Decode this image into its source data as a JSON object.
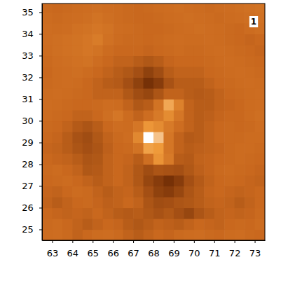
{
  "chart_data": {
    "type": "heatmap",
    "annotations": [
      "1"
    ],
    "xlim": [
      62.5,
      73.5
    ],
    "ylim": [
      24.5,
      35.4
    ],
    "xticks": [
      63,
      64,
      65,
      66,
      67,
      68,
      69,
      70,
      71,
      72,
      73
    ],
    "yticks": [
      25,
      26,
      27,
      28,
      29,
      30,
      31,
      32,
      33,
      34,
      35
    ],
    "zlim": [
      0,
      1
    ],
    "x": [
      62.75,
      63.25,
      63.75,
      64.25,
      64.75,
      65.25,
      65.75,
      66.25,
      66.75,
      67.25,
      67.75,
      68.25,
      68.75,
      69.25,
      69.75,
      70.25,
      70.75,
      71.25,
      71.75,
      72.25,
      72.75,
      73.25
    ],
    "y": [
      24.75,
      25.25,
      25.75,
      26.25,
      26.75,
      27.25,
      27.75,
      28.25,
      28.75,
      29.25,
      29.75,
      30.25,
      30.75,
      31.25,
      31.75,
      32.25,
      32.75,
      33.25,
      33.75,
      34.25,
      34.75,
      35.25
    ],
    "z": [
      [
        0.44,
        0.45,
        0.43,
        0.4,
        0.42,
        0.44,
        0.45,
        0.43,
        0.4,
        0.38,
        0.4,
        0.42,
        0.41,
        0.43,
        0.44,
        0.45,
        0.43,
        0.42,
        0.44,
        0.45,
        0.43,
        0.42
      ],
      [
        0.43,
        0.44,
        0.42,
        0.4,
        0.38,
        0.4,
        0.42,
        0.41,
        0.38,
        0.36,
        0.38,
        0.4,
        0.39,
        0.38,
        0.4,
        0.42,
        0.41,
        0.4,
        0.42,
        0.43,
        0.42,
        0.44
      ],
      [
        0.42,
        0.41,
        0.4,
        0.41,
        0.4,
        0.42,
        0.4,
        0.38,
        0.37,
        0.38,
        0.36,
        0.34,
        0.36,
        0.33,
        0.3,
        0.35,
        0.38,
        0.4,
        0.41,
        0.4,
        0.41,
        0.43
      ],
      [
        0.4,
        0.38,
        0.4,
        0.42,
        0.43,
        0.41,
        0.39,
        0.4,
        0.42,
        0.4,
        0.35,
        0.32,
        0.33,
        0.35,
        0.36,
        0.38,
        0.4,
        0.41,
        0.4,
        0.38,
        0.4,
        0.42
      ],
      [
        0.41,
        0.4,
        0.42,
        0.44,
        0.43,
        0.4,
        0.38,
        0.4,
        0.41,
        0.38,
        0.33,
        0.28,
        0.26,
        0.3,
        0.35,
        0.38,
        0.41,
        0.42,
        0.41,
        0.4,
        0.41,
        0.42
      ],
      [
        0.42,
        0.43,
        0.44,
        0.42,
        0.4,
        0.38,
        0.4,
        0.42,
        0.4,
        0.36,
        0.3,
        0.26,
        0.22,
        0.26,
        0.33,
        0.37,
        0.4,
        0.42,
        0.43,
        0.42,
        0.41,
        0.4
      ],
      [
        0.43,
        0.44,
        0.42,
        0.4,
        0.36,
        0.37,
        0.4,
        0.42,
        0.4,
        0.36,
        0.32,
        0.35,
        0.34,
        0.33,
        0.36,
        0.39,
        0.41,
        0.43,
        0.44,
        0.43,
        0.42,
        0.41
      ],
      [
        0.42,
        0.41,
        0.4,
        0.38,
        0.35,
        0.36,
        0.4,
        0.42,
        0.41,
        0.38,
        0.46,
        0.66,
        0.52,
        0.38,
        0.37,
        0.4,
        0.41,
        0.42,
        0.43,
        0.44,
        0.43,
        0.42
      ],
      [
        0.41,
        0.4,
        0.38,
        0.35,
        0.33,
        0.35,
        0.39,
        0.42,
        0.43,
        0.48,
        0.72,
        0.7,
        0.5,
        0.4,
        0.38,
        0.39,
        0.4,
        0.41,
        0.43,
        0.44,
        0.44,
        0.43
      ],
      [
        0.42,
        0.41,
        0.38,
        0.34,
        0.32,
        0.36,
        0.4,
        0.43,
        0.45,
        0.6,
        1.0,
        0.82,
        0.5,
        0.4,
        0.37,
        0.38,
        0.4,
        0.42,
        0.43,
        0.43,
        0.44,
        0.44
      ],
      [
        0.43,
        0.42,
        0.4,
        0.37,
        0.35,
        0.38,
        0.42,
        0.45,
        0.44,
        0.5,
        0.68,
        0.62,
        0.52,
        0.45,
        0.4,
        0.38,
        0.4,
        0.42,
        0.43,
        0.42,
        0.43,
        0.45
      ],
      [
        0.44,
        0.43,
        0.42,
        0.4,
        0.4,
        0.42,
        0.46,
        0.5,
        0.44,
        0.4,
        0.45,
        0.52,
        0.62,
        0.5,
        0.4,
        0.38,
        0.39,
        0.41,
        0.42,
        0.42,
        0.44,
        0.46
      ],
      [
        0.45,
        0.44,
        0.43,
        0.42,
        0.42,
        0.43,
        0.45,
        0.44,
        0.4,
        0.36,
        0.38,
        0.48,
        0.74,
        0.56,
        0.4,
        0.38,
        0.38,
        0.4,
        0.41,
        0.42,
        0.44,
        0.45
      ],
      [
        0.44,
        0.45,
        0.44,
        0.43,
        0.42,
        0.4,
        0.4,
        0.4,
        0.36,
        0.32,
        0.3,
        0.35,
        0.4,
        0.4,
        0.38,
        0.37,
        0.38,
        0.4,
        0.42,
        0.43,
        0.44,
        0.45
      ],
      [
        0.43,
        0.44,
        0.45,
        0.44,
        0.42,
        0.4,
        0.38,
        0.37,
        0.33,
        0.28,
        0.22,
        0.26,
        0.34,
        0.38,
        0.38,
        0.38,
        0.4,
        0.42,
        0.43,
        0.44,
        0.45,
        0.44
      ],
      [
        0.42,
        0.44,
        0.45,
        0.46,
        0.44,
        0.42,
        0.4,
        0.38,
        0.36,
        0.33,
        0.28,
        0.32,
        0.38,
        0.4,
        0.4,
        0.4,
        0.42,
        0.43,
        0.44,
        0.45,
        0.44,
        0.43
      ],
      [
        0.43,
        0.45,
        0.46,
        0.47,
        0.48,
        0.45,
        0.42,
        0.4,
        0.4,
        0.38,
        0.36,
        0.38,
        0.41,
        0.42,
        0.42,
        0.42,
        0.43,
        0.44,
        0.45,
        0.44,
        0.43,
        0.42
      ],
      [
        0.44,
        0.46,
        0.47,
        0.48,
        0.5,
        0.48,
        0.44,
        0.42,
        0.42,
        0.42,
        0.41,
        0.42,
        0.43,
        0.44,
        0.43,
        0.43,
        0.44,
        0.45,
        0.44,
        0.43,
        0.42,
        0.41
      ],
      [
        0.45,
        0.46,
        0.47,
        0.48,
        0.5,
        0.53,
        0.47,
        0.44,
        0.43,
        0.43,
        0.42,
        0.43,
        0.44,
        0.45,
        0.44,
        0.44,
        0.45,
        0.44,
        0.43,
        0.42,
        0.41,
        0.42
      ],
      [
        0.45,
        0.44,
        0.45,
        0.47,
        0.48,
        0.5,
        0.48,
        0.45,
        0.44,
        0.43,
        0.42,
        0.42,
        0.43,
        0.44,
        0.45,
        0.46,
        0.45,
        0.44,
        0.43,
        0.42,
        0.44,
        0.46
      ],
      [
        0.44,
        0.43,
        0.44,
        0.45,
        0.46,
        0.48,
        0.46,
        0.44,
        0.43,
        0.42,
        0.42,
        0.43,
        0.44,
        0.45,
        0.46,
        0.45,
        0.44,
        0.43,
        0.44,
        0.45,
        0.46,
        0.47
      ],
      [
        0.43,
        0.42,
        0.43,
        0.44,
        0.45,
        0.46,
        0.45,
        0.44,
        0.43,
        0.42,
        0.43,
        0.44,
        0.45,
        0.46,
        0.45,
        0.44,
        0.43,
        0.44,
        0.45,
        0.46,
        0.47,
        0.48
      ]
    ]
  }
}
